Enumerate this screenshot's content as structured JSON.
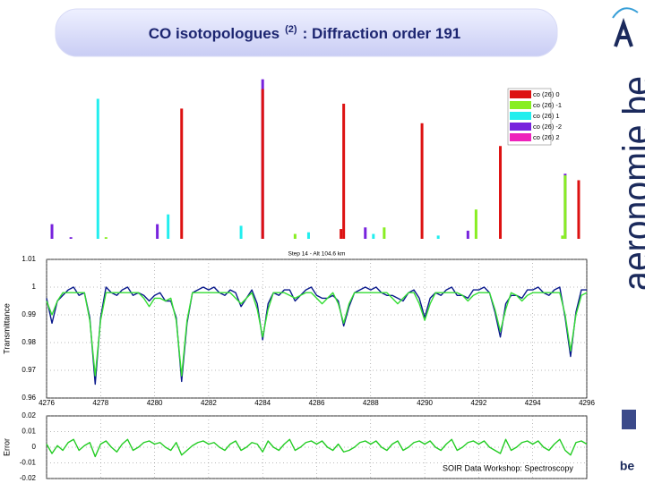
{
  "slide": {
    "title": "CO isotopologues",
    "title_superscript": "(2)",
    "title_rest": ": Diffraction order 191",
    "logo": "aeronomie.be",
    "footer": "SOIR Data Workshop: Spectroscopy",
    "badge": "be"
  },
  "chart_data": [
    {
      "type": "bar",
      "xlim": [
        4276,
        4296
      ],
      "ylim": [
        0,
        1
      ],
      "legend": "upper right",
      "series": [
        {
          "name": "co (26) 0",
          "color": "#dd1111",
          "x": [
            4281.0,
            4284.0,
            4286.9,
            4287.0,
            4289.9,
            4292.8,
            4295.7
          ],
          "values": [
            0.8,
            0.92,
            0.06,
            0.83,
            0.71,
            0.57,
            0.36
          ]
        },
        {
          "name": "co (26) -1",
          "color": "#88ee22",
          "x": [
            4278.2,
            4285.2,
            4288.5,
            4291.9,
            4295.1,
            4295.2
          ],
          "values": [
            0.01,
            0.03,
            0.07,
            0.18,
            0.02,
            0.39
          ]
        },
        {
          "name": "co (26) 1",
          "color": "#22eeee",
          "x": [
            4277.9,
            4280.5,
            4283.2,
            4285.7,
            4288.1,
            4290.5
          ],
          "values": [
            0.86,
            0.15,
            0.08,
            0.04,
            0.03,
            0.02
          ]
        },
        {
          "name": "co (26) -2",
          "color": "#7722dd",
          "x": [
            4276.2,
            4276.9,
            4280.1,
            4284.0,
            4287.8,
            4291.6,
            4295.2
          ],
          "values": [
            0.09,
            0.01,
            0.09,
            0.98,
            0.07,
            0.05,
            0.4
          ]
        },
        {
          "name": "co (26) 2",
          "color": "#ee22bb",
          "x": [],
          "values": []
        }
      ]
    },
    {
      "type": "line",
      "title": "Step 14 - Alt 104.6 km",
      "ylabel": "Transmittance",
      "xlim": [
        4276,
        4296
      ],
      "ylim": [
        0.96,
        1.01
      ],
      "xticks": [
        4276,
        4278,
        4280,
        4282,
        4284,
        4286,
        4288,
        4290,
        4292,
        4294,
        4296
      ],
      "yticks": [
        1.01,
        1,
        0.99,
        0.98,
        0.97,
        0.96
      ],
      "grid": true,
      "x": [
        4276,
        4276.2,
        4276.4,
        4276.6,
        4276.8,
        4277,
        4277.2,
        4277.4,
        4277.6,
        4277.8,
        4278,
        4278.2,
        4278.4,
        4278.6,
        4278.8,
        4279,
        4279.2,
        4279.4,
        4279.6,
        4279.8,
        4280,
        4280.2,
        4280.4,
        4280.6,
        4280.8,
        4281,
        4281.2,
        4281.4,
        4281.6,
        4281.8,
        4282,
        4282.2,
        4282.4,
        4282.6,
        4282.8,
        4283,
        4283.2,
        4283.4,
        4283.6,
        4283.8,
        4284,
        4284.2,
        4284.4,
        4284.6,
        4284.8,
        4285,
        4285.2,
        4285.4,
        4285.6,
        4285.8,
        4286,
        4286.2,
        4286.4,
        4286.6,
        4286.8,
        4287,
        4287.2,
        4287.4,
        4287.6,
        4287.8,
        4288,
        4288.2,
        4288.4,
        4288.6,
        4288.8,
        4289,
        4289.2,
        4289.4,
        4289.6,
        4289.8,
        4290,
        4290.2,
        4290.4,
        4290.6,
        4290.8,
        4291,
        4291.2,
        4291.4,
        4291.6,
        4291.8,
        4292,
        4292.2,
        4292.4,
        4292.6,
        4292.8,
        4293,
        4293.2,
        4293.4,
        4293.6,
        4293.8,
        4294,
        4294.2,
        4294.4,
        4294.6,
        4294.8,
        4295,
        4295.2,
        4295.4,
        4295.6,
        4295.8,
        4296
      ],
      "series": [
        {
          "color": "#0a1a8c",
          "values": [
            0.996,
            0.987,
            0.995,
            0.997,
            0.999,
            1.0,
            0.997,
            0.998,
            0.989,
            0.965,
            0.989,
            1.0,
            0.998,
            0.997,
            0.999,
            1.0,
            0.997,
            0.998,
            0.997,
            0.995,
            0.997,
            0.998,
            0.995,
            0.995,
            0.989,
            0.966,
            0.987,
            0.998,
            0.999,
            1.0,
            0.999,
            1.0,
            0.998,
            0.997,
            0.999,
            0.998,
            0.993,
            0.996,
            0.999,
            0.994,
            0.981,
            0.994,
            0.998,
            0.997,
            0.999,
            0.999,
            0.995,
            0.997,
            0.999,
            1.0,
            0.997,
            0.996,
            0.996,
            0.997,
            0.995,
            0.986,
            0.993,
            0.998,
            0.999,
            1.0,
            0.999,
            1.0,
            0.998,
            0.997,
            0.997,
            0.996,
            0.995,
            0.998,
            0.999,
            0.996,
            0.989,
            0.996,
            0.998,
            0.997,
            0.999,
            1.0,
            0.997,
            0.997,
            0.996,
            0.999,
            0.999,
            1.0,
            0.998,
            0.991,
            0.982,
            0.994,
            0.997,
            0.997,
            0.996,
            0.999,
            0.999,
            1.0,
            0.998,
            0.997,
            0.999,
            1.0,
            0.989,
            0.975,
            0.991,
            0.999,
            0.999
          ]
        },
        {
          "color": "#33dd33",
          "values": [
            0.995,
            0.99,
            0.995,
            0.998,
            0.998,
            0.998,
            0.998,
            0.998,
            0.988,
            0.968,
            0.988,
            0.998,
            0.998,
            0.998,
            0.998,
            0.998,
            0.998,
            0.998,
            0.996,
            0.993,
            0.996,
            0.996,
            0.995,
            0.996,
            0.988,
            0.968,
            0.988,
            0.998,
            0.998,
            0.998,
            0.998,
            0.998,
            0.998,
            0.998,
            0.998,
            0.996,
            0.994,
            0.996,
            0.998,
            0.992,
            0.982,
            0.992,
            0.998,
            0.998,
            0.998,
            0.997,
            0.996,
            0.997,
            0.998,
            0.998,
            0.996,
            0.994,
            0.996,
            0.998,
            0.994,
            0.987,
            0.994,
            0.998,
            0.998,
            0.998,
            0.998,
            0.998,
            0.998,
            0.998,
            0.996,
            0.994,
            0.996,
            0.998,
            0.998,
            0.994,
            0.988,
            0.994,
            0.998,
            0.998,
            0.998,
            0.998,
            0.998,
            0.997,
            0.995,
            0.997,
            0.998,
            0.998,
            0.998,
            0.992,
            0.984,
            0.992,
            0.998,
            0.997,
            0.995,
            0.997,
            0.998,
            0.998,
            0.998,
            0.998,
            0.998,
            0.998,
            0.99,
            0.977,
            0.99,
            0.997,
            0.998
          ]
        }
      ]
    },
    {
      "type": "line",
      "ylabel": "Error",
      "xlim": [
        4276,
        4296
      ],
      "ylim": [
        -0.02,
        0.02
      ],
      "yticks": [
        0.02,
        0.01,
        0,
        -0.01,
        -0.02
      ],
      "grid": true,
      "x": [
        4276,
        4276.2,
        4276.4,
        4276.6,
        4276.8,
        4277,
        4277.2,
        4277.4,
        4277.6,
        4277.8,
        4278,
        4278.2,
        4278.4,
        4278.6,
        4278.8,
        4279,
        4279.2,
        4279.4,
        4279.6,
        4279.8,
        4280,
        4280.2,
        4280.4,
        4280.6,
        4280.8,
        4281,
        4281.2,
        4281.4,
        4281.6,
        4281.8,
        4282,
        4282.2,
        4282.4,
        4282.6,
        4282.8,
        4283,
        4283.2,
        4283.4,
        4283.6,
        4283.8,
        4284,
        4284.2,
        4284.4,
        4284.6,
        4284.8,
        4285,
        4285.2,
        4285.4,
        4285.6,
        4285.8,
        4286,
        4286.2,
        4286.4,
        4286.6,
        4286.8,
        4287,
        4287.2,
        4287.4,
        4287.6,
        4287.8,
        4288,
        4288.2,
        4288.4,
        4288.6,
        4288.8,
        4289,
        4289.2,
        4289.4,
        4289.6,
        4289.8,
        4290,
        4290.2,
        4290.4,
        4290.6,
        4290.8,
        4291,
        4291.2,
        4291.4,
        4291.6,
        4291.8,
        4292,
        4292.2,
        4292.4,
        4292.6,
        4292.8,
        4293,
        4293.2,
        4293.4,
        4293.6,
        4293.8,
        4294,
        4294.2,
        4294.4,
        4294.6,
        4294.8,
        4295,
        4295.2,
        4295.4,
        4295.6,
        4295.8,
        4296
      ],
      "series": [
        {
          "color": "#22cc22",
          "values": [
            0.002,
            -0.004,
            0.001,
            -0.002,
            0.003,
            0.005,
            -0.002,
            0.001,
            0.003,
            -0.006,
            0.002,
            0.004,
            0,
            -0.003,
            0.002,
            0.005,
            -0.002,
            0,
            0.003,
            0.004,
            0.002,
            0.003,
            0,
            -0.002,
            0.003,
            -0.005,
            -0.002,
            0.001,
            0.003,
            0.004,
            0.002,
            0.003,
            0,
            -0.002,
            0.002,
            0.004,
            -0.002,
            0,
            0.003,
            0.002,
            -0.003,
            0.004,
            0,
            -0.002,
            0.002,
            0.005,
            -0.002,
            0,
            0.003,
            0.004,
            0.002,
            0.004,
            0,
            -0.002,
            0.002,
            -0.003,
            -0.002,
            0,
            0.003,
            0.004,
            0.002,
            0.004,
            0,
            -0.002,
            0.002,
            0.004,
            -0.002,
            0,
            0.003,
            0.004,
            0.002,
            0.004,
            0,
            -0.002,
            0.002,
            0.005,
            -0.002,
            0,
            0.003,
            0.004,
            0.002,
            0.004,
            0,
            -0.002,
            -0.004,
            0.005,
            -0.002,
            0,
            0.003,
            0.004,
            0.002,
            0.004,
            0,
            -0.002,
            0.002,
            0.005,
            -0.002,
            -0.005,
            0.003,
            0.004,
            0.002
          ]
        }
      ]
    }
  ]
}
